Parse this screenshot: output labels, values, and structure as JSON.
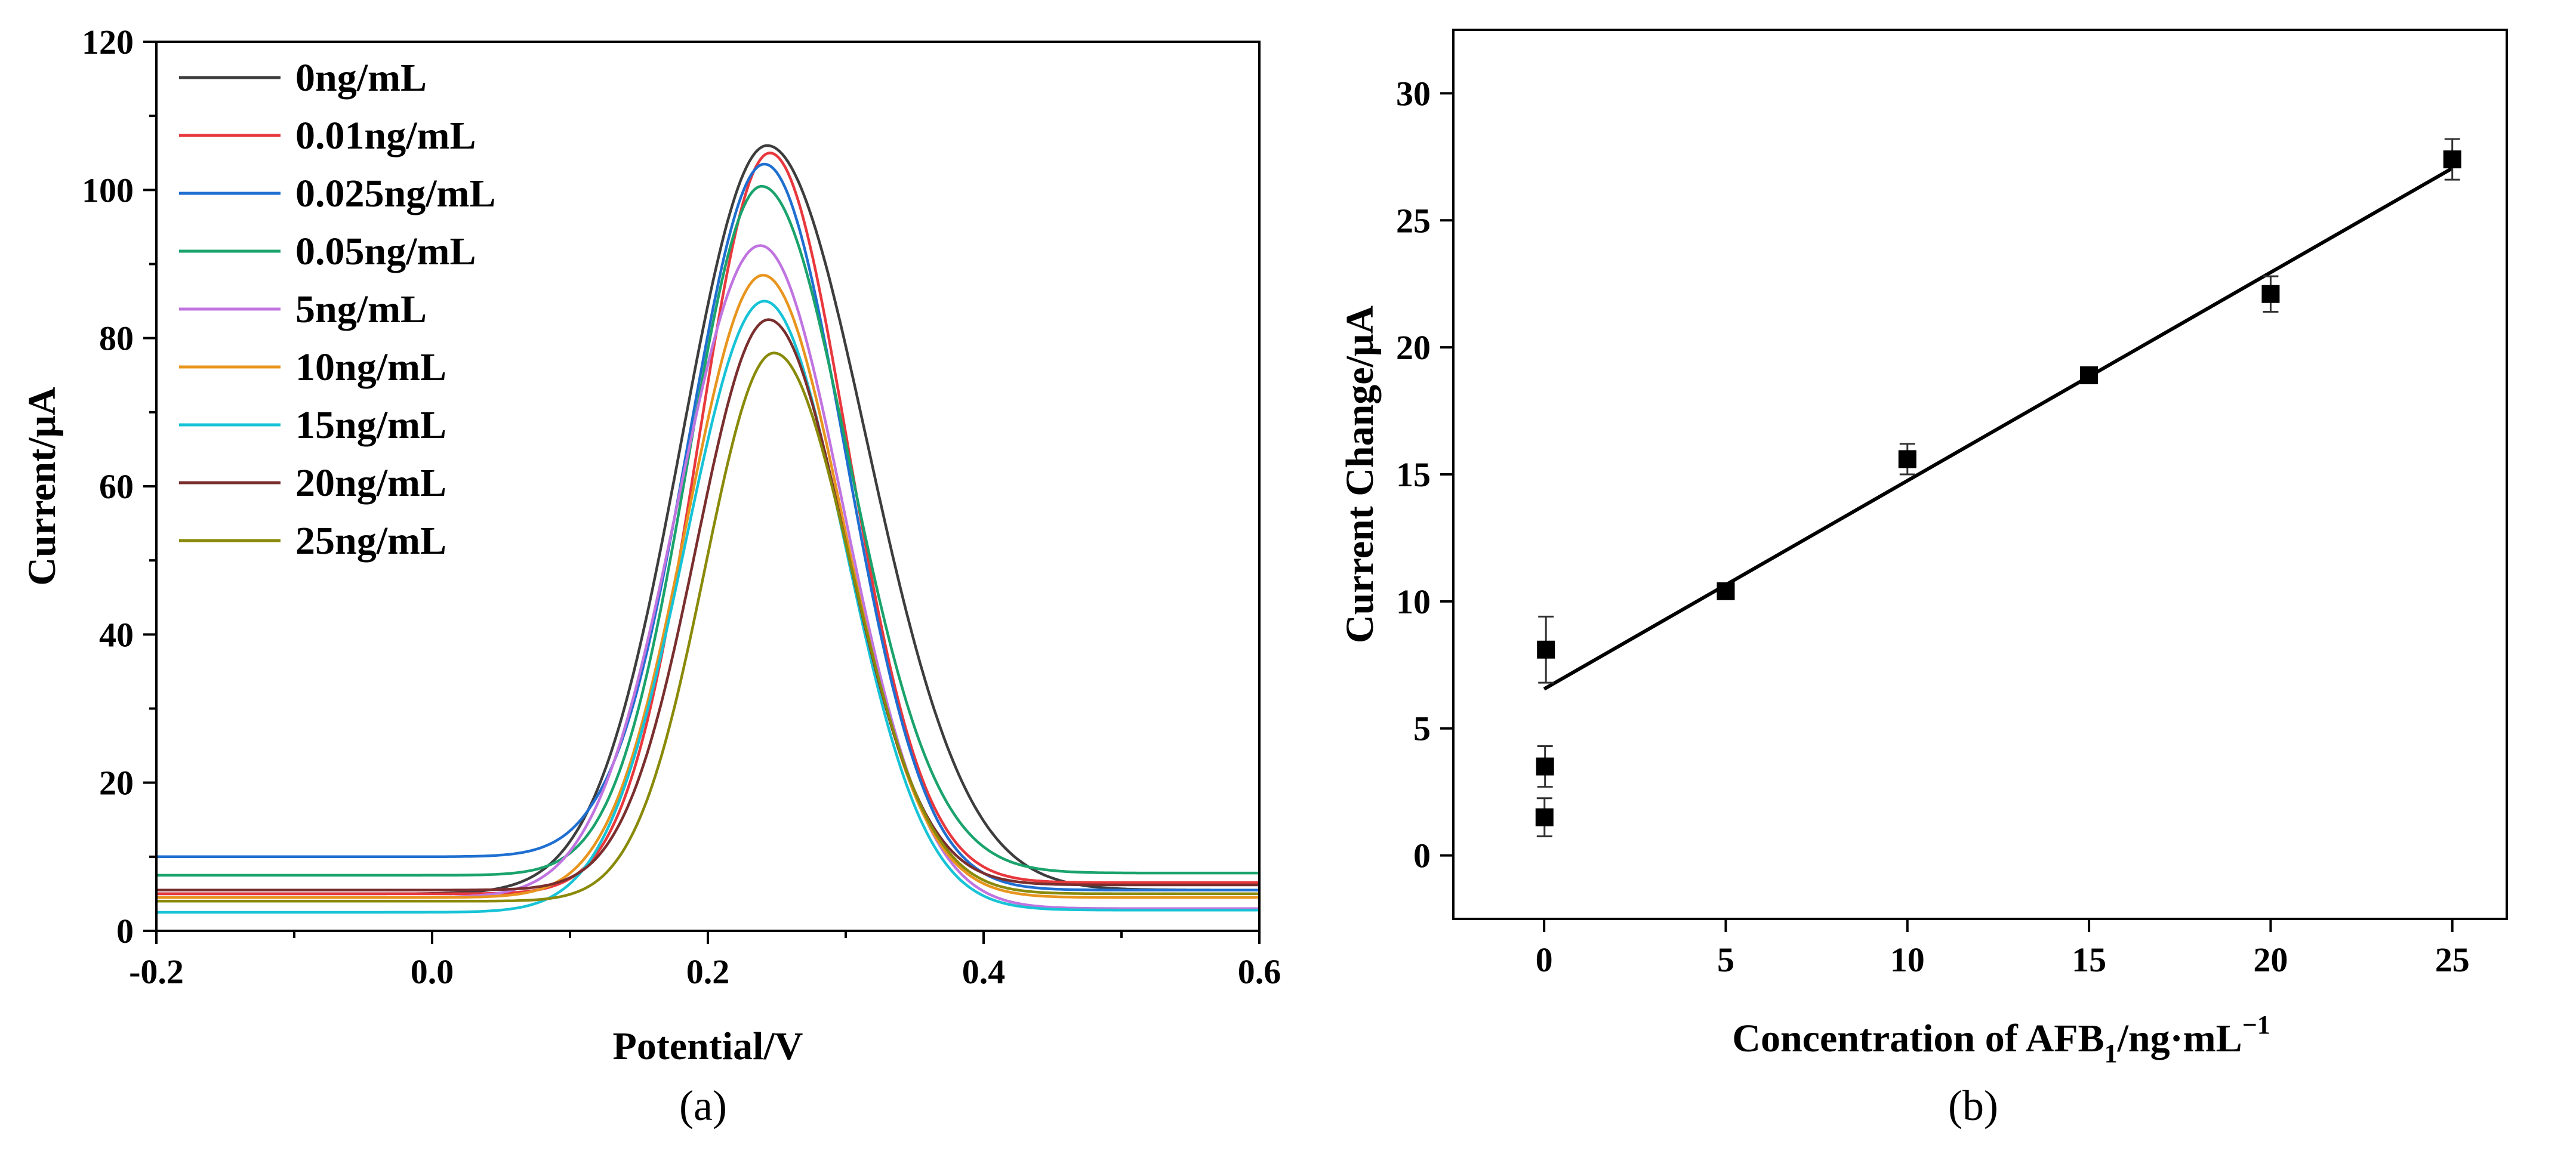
{
  "chart_data": [
    {
      "id": "a",
      "type": "line",
      "caption": "(a)",
      "xlabel": "Potential/V",
      "ylabel": "Current/μA",
      "xlim": [
        -0.2,
        0.6
      ],
      "ylim": [
        0,
        120
      ],
      "xticks": [
        -0.2,
        0.0,
        0.2,
        0.4,
        0.6
      ],
      "xtick_labels": [
        "-0.2",
        "0.0",
        "0.2",
        "0.4",
        "0.6"
      ],
      "yticks": [
        0,
        20,
        40,
        60,
        80,
        100,
        120
      ],
      "ytick_labels": [
        "0",
        "20",
        "40",
        "60",
        "80",
        "100",
        "120"
      ],
      "legend_position": "top-left",
      "series": [
        {
          "name": "0ng/mL",
          "color": "#3d3d3d",
          "left": 5.0,
          "right": 5.5,
          "baseline_x": 0.02,
          "peak_x": 0.243,
          "peak": 106.0,
          "sigma_l": 0.062,
          "sigma_r": 0.072
        },
        {
          "name": "0.01ng/mL",
          "color": "#e8383d",
          "left": 5.0,
          "right": 6.5,
          "baseline_x": 0.05,
          "peak_x": 0.245,
          "peak": 105.0,
          "sigma_l": 0.052,
          "sigma_r": 0.056
        },
        {
          "name": "0.025ng/mL",
          "color": "#1f6fd1",
          "left": 10.0,
          "right": 5.5,
          "baseline_x": 0.0,
          "peak_x": 0.241,
          "peak": 103.5,
          "sigma_l": 0.055,
          "sigma_r": 0.058
        },
        {
          "name": "0.05ng/mL",
          "color": "#1aa36c",
          "left": 7.5,
          "right": 7.8,
          "baseline_x": 0.0,
          "peak_x": 0.239,
          "peak": 100.5,
          "sigma_l": 0.053,
          "sigma_r": 0.063
        },
        {
          "name": "5ng/mL",
          "color": "#c074e0",
          "left": 4.5,
          "right": 3.0,
          "baseline_x": 0.02,
          "peak_x": 0.238,
          "peak": 92.5,
          "sigma_l": 0.06,
          "sigma_r": 0.06
        },
        {
          "name": "10ng/mL",
          "color": "#e8951e",
          "left": 4.5,
          "right": 4.5,
          "baseline_x": 0.04,
          "peak_x": 0.24,
          "peak": 88.5,
          "sigma_l": 0.055,
          "sigma_r": 0.058
        },
        {
          "name": "15ng/mL",
          "color": "#17c3d6",
          "left": 2.5,
          "right": 2.8,
          "baseline_x": 0.02,
          "peak_x": 0.241,
          "peak": 85.0,
          "sigma_l": 0.057,
          "sigma_r": 0.058
        },
        {
          "name": "20ng/mL",
          "color": "#7a2e2e",
          "left": 5.5,
          "right": 6.2,
          "baseline_x": 0.05,
          "peak_x": 0.244,
          "peak": 82.5,
          "sigma_l": 0.052,
          "sigma_r": 0.056
        },
        {
          "name": "25ng/mL",
          "color": "#8a8a0a",
          "left": 4.0,
          "right": 5.0,
          "baseline_x": 0.06,
          "peak_x": 0.248,
          "peak": 78.0,
          "sigma_l": 0.05,
          "sigma_r": 0.056
        }
      ]
    },
    {
      "id": "b",
      "type": "scatter",
      "caption": "(b)",
      "xlabel_main": "Concentration of AFB",
      "xlabel_sub": "1",
      "xlabel_rest": "/ng·mL",
      "xlabel_sup": "−1",
      "ylabel": "Current Change/μA",
      "xlim": [
        -2.5,
        26.5
      ],
      "ylim": [
        -2.5,
        32.5
      ],
      "xticks": [
        0,
        5,
        10,
        15,
        20,
        25
      ],
      "xtick_labels": [
        "0",
        "5",
        "10",
        "15",
        "20",
        "25"
      ],
      "yticks": [
        0,
        5,
        10,
        15,
        20,
        25,
        30
      ],
      "ytick_labels": [
        "0",
        "5",
        "10",
        "15",
        "20",
        "25",
        "30"
      ],
      "points": [
        {
          "x": 0.01,
          "y": 1.5,
          "err": 0.75
        },
        {
          "x": 0.025,
          "y": 3.5,
          "err": 0.8
        },
        {
          "x": 0.05,
          "y": 8.1,
          "err": 1.3
        },
        {
          "x": 5,
          "y": 10.4,
          "err": 0.3
        },
        {
          "x": 10,
          "y": 15.6,
          "err": 0.6
        },
        {
          "x": 15,
          "y": 18.9,
          "err": 0.3
        },
        {
          "x": 20,
          "y": 22.1,
          "err": 0.7
        },
        {
          "x": 25,
          "y": 27.4,
          "err": 0.8
        }
      ],
      "fit_line": {
        "x_start": 0,
        "y_start": 6.55,
        "x_end": 25,
        "y_end": 27.05
      }
    }
  ]
}
